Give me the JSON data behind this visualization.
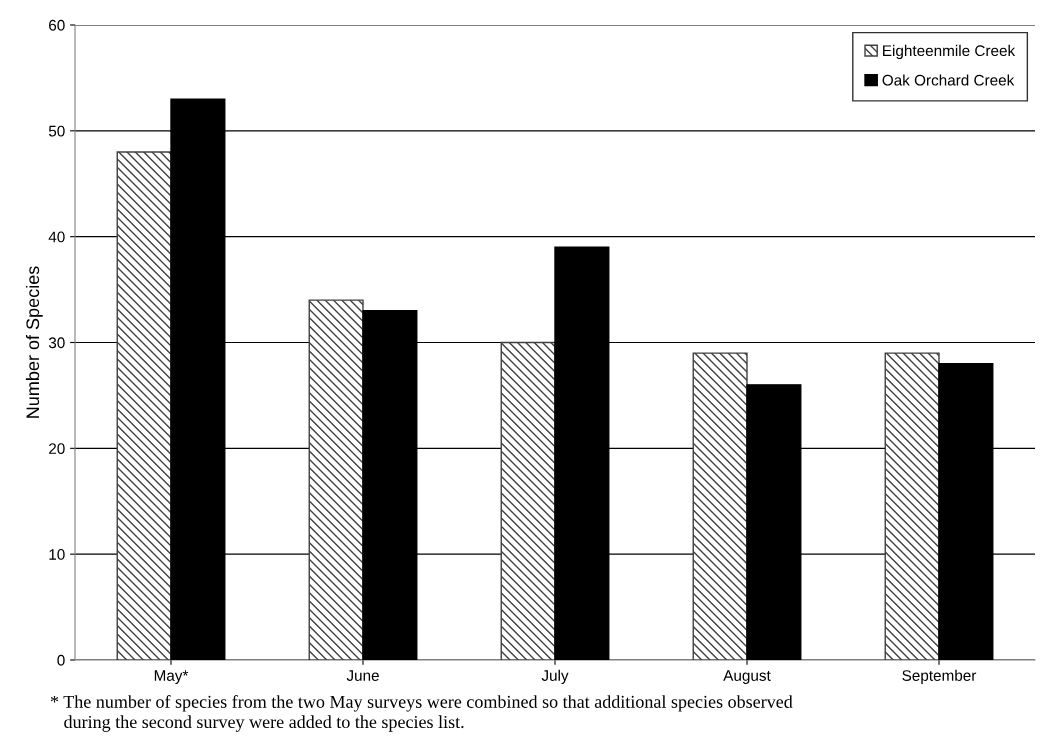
{
  "chart_data": {
    "type": "bar",
    "ylabel": "Number of Species",
    "categories": [
      "May*",
      "June",
      "July",
      "August",
      "September"
    ],
    "series": [
      {
        "name": "Eighteenmile Creek",
        "color": "#404040",
        "values": [
          48,
          34,
          30,
          29,
          29
        ]
      },
      {
        "name": "Oak Orchard Creek",
        "color": "#000000",
        "values": [
          53,
          33,
          39,
          26,
          28
        ]
      }
    ],
    "ylim": [
      0,
      60
    ],
    "yticks": [
      0,
      10,
      20,
      30,
      40,
      50,
      60
    ],
    "grid": "y",
    "legend": "top right",
    "annotations": [
      "* The number of species from the two May surveys were combined so that additional species observed\n   during the second survey were added to the species list."
    ]
  }
}
